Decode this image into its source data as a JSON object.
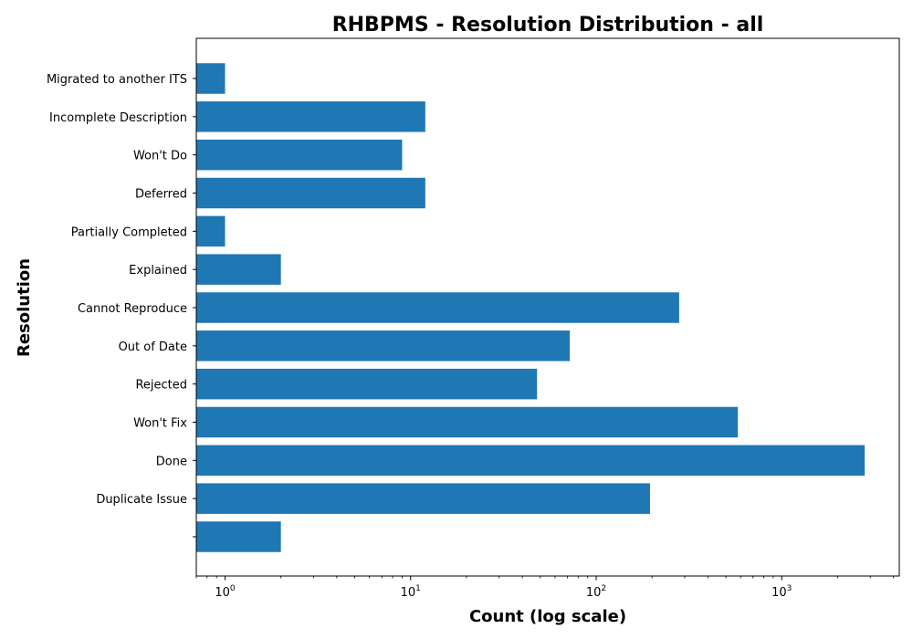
{
  "chart_data": {
    "type": "bar",
    "orientation": "horizontal",
    "title": "RHBPMS - Resolution Distribution - all",
    "xlabel": "Count (log scale)",
    "ylabel": "Resolution",
    "x_scale": "log",
    "xlim": [
      0.7,
      4300
    ],
    "x_ticks": [
      {
        "value": 1,
        "label": "10",
        "exp": "0"
      },
      {
        "value": 10,
        "label": "10",
        "exp": "1"
      },
      {
        "value": 100,
        "label": "10",
        "exp": "2"
      },
      {
        "value": 1000,
        "label": "10",
        "exp": "3"
      }
    ],
    "categories": [
      "",
      "Duplicate Issue",
      "Done",
      "Won't Fix",
      "Rejected",
      "Out of Date",
      "Cannot Reproduce",
      "Explained",
      "Partially Completed",
      "Deferred",
      "Won't Do",
      "Incomplete Description",
      "Migrated to another ITS"
    ],
    "values": [
      2,
      195,
      2800,
      580,
      48,
      72,
      280,
      2,
      1,
      12,
      9,
      12,
      1
    ],
    "bar_color": "#1f77b4",
    "grid": false,
    "legend": "none"
  }
}
